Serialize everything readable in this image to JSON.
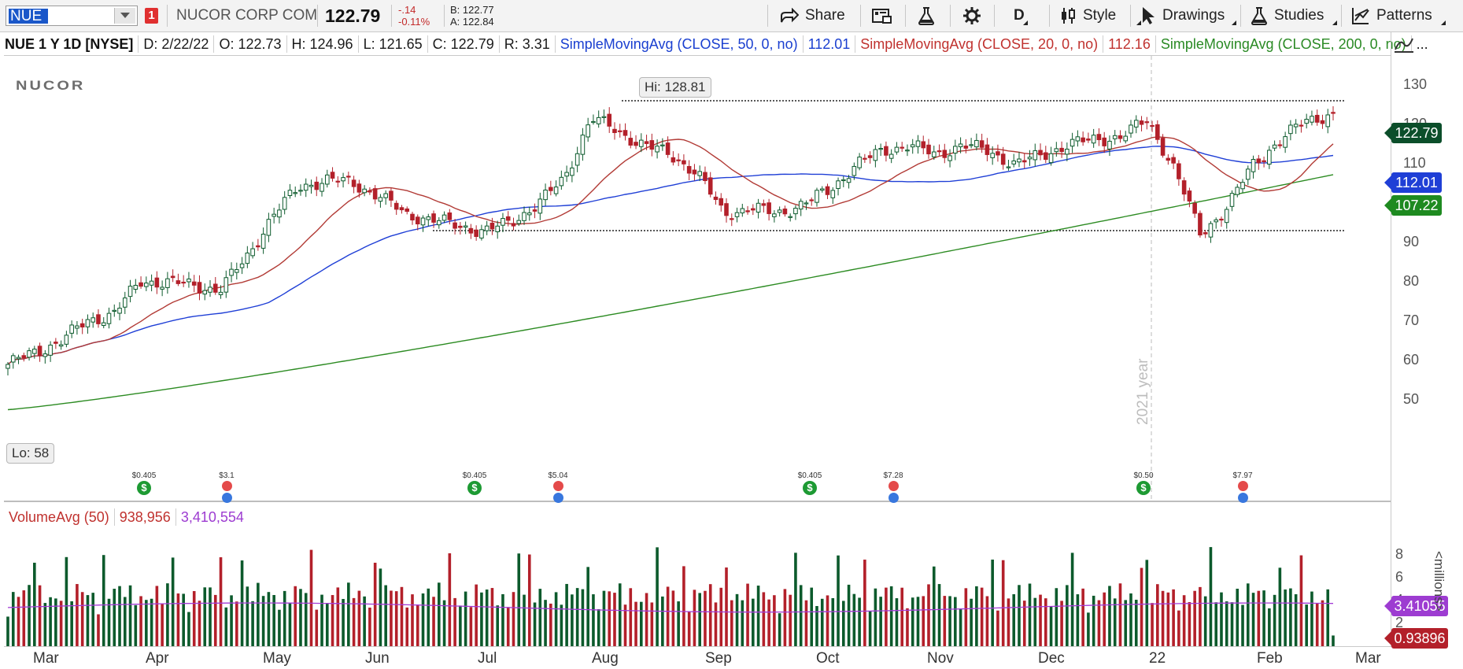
{
  "toolbar": {
    "symbol": "NUE",
    "link_number": "1",
    "company": "NUCOR CORP COM",
    "last": "122.79",
    "net_change": "-.14",
    "pct_change": "-0.11%",
    "bid": "B: 122.77",
    "ask": "A: 122.84",
    "share_label": "Share",
    "aggregation": "D",
    "style_label": "Style",
    "drawings_label": "Drawings",
    "studies_label": "Studies",
    "patterns_label": "Patterns"
  },
  "header": {
    "symbol_info": "NUE 1 Y 1D [NYSE]",
    "date": "D: 2/22/22",
    "open": "O: 122.73",
    "high": "H: 124.96",
    "low": "L: 121.65",
    "close": "C: 122.79",
    "range": "R: 3.31",
    "sma50_label": "SimpleMovingAvg (CLOSE, 50, 0, no)",
    "sma50_value": "112.01",
    "sma20_label": "SimpleMovingAvg (CLOSE, 20, 0, no)",
    "sma20_value": "112.16",
    "sma200_label": "SimpleMovingAvg (CLOSE, 200, 0, no)",
    "more": "..."
  },
  "chart": {
    "logo": "NUCOR",
    "high_label": "Hi: 128.81",
    "low_label": "Lo: 58",
    "year_watermark": "2021 year",
    "price_axis": [
      "130",
      "120",
      "110",
      "100",
      "90",
      "80",
      "70",
      "60",
      "50"
    ],
    "last_tag": "122.79",
    "sma50_tag": "112.01",
    "sma200_tag": "107.22",
    "events": [
      {
        "type": "dividend",
        "amount": "$0.405"
      },
      {
        "type": "earnings",
        "amount": "$3.1"
      },
      {
        "type": "dividend",
        "amount": "$0.405"
      },
      {
        "type": "earnings",
        "amount": "$5.04"
      },
      {
        "type": "dividend",
        "amount": "$0.405"
      },
      {
        "type": "earnings",
        "amount": "$7.28"
      },
      {
        "type": "dividend",
        "amount": "$0.50"
      },
      {
        "type": "earnings",
        "amount": "$7.97"
      }
    ],
    "x_axis": [
      "Mar",
      "Apr",
      "May",
      "Jun",
      "Jul",
      "Aug",
      "Sep",
      "Oct",
      "Nov",
      "Dec",
      "22",
      "Feb",
      "Mar"
    ],
    "colors": {
      "up": "#0c5a2c",
      "down": "#b3202a",
      "sma50": "#1f3fd6",
      "sma20": "#b23b36",
      "sma200": "#2c8b22",
      "vol_avg": "#a33bd6"
    }
  },
  "volume": {
    "label": "VolumeAvg (50)",
    "volume_value": "938,956",
    "avg_value": "3,410,554",
    "axis": [
      "8",
      "6",
      "4",
      "2"
    ],
    "avg_tag": "3.41055",
    "vol_tag": "0.93896",
    "unit": "<millions>"
  },
  "chart_data": {
    "type": "candlestick",
    "title": "NUE 1 Y 1D [NYSE]",
    "ylim": [
      45,
      133
    ],
    "x_months": [
      "Mar",
      "Apr",
      "May",
      "Jun",
      "Jul",
      "Aug",
      "Sep",
      "Oct",
      "Nov",
      "Dec",
      "22",
      "Feb",
      "Mar"
    ],
    "close_by_week": [
      59,
      62,
      65,
      70,
      72,
      80,
      80,
      79,
      78,
      86,
      97,
      104,
      106,
      105,
      102,
      97,
      96,
      94,
      93,
      95,
      100,
      106,
      122,
      118,
      115,
      112,
      108,
      97,
      99,
      97,
      100,
      103,
      110,
      113,
      115,
      112,
      115,
      113,
      110,
      112,
      115,
      116,
      117,
      121,
      109,
      92,
      99,
      110,
      116,
      121,
      122.79
    ],
    "hi": 128.81,
    "lo": 58,
    "series": [
      {
        "name": "SimpleMovingAvg (CLOSE, 50, 0, no)",
        "last": 112.01
      },
      {
        "name": "SimpleMovingAvg (CLOSE, 20, 0, no)",
        "last": 112.16
      },
      {
        "name": "SimpleMovingAvg (CLOSE, 200, 0, no)",
        "last": 107.22
      }
    ],
    "reference_lines": [
      126,
      93
    ],
    "volume_millions_last": 0.93896,
    "volume_avg_millions_last": 3.41055
  }
}
